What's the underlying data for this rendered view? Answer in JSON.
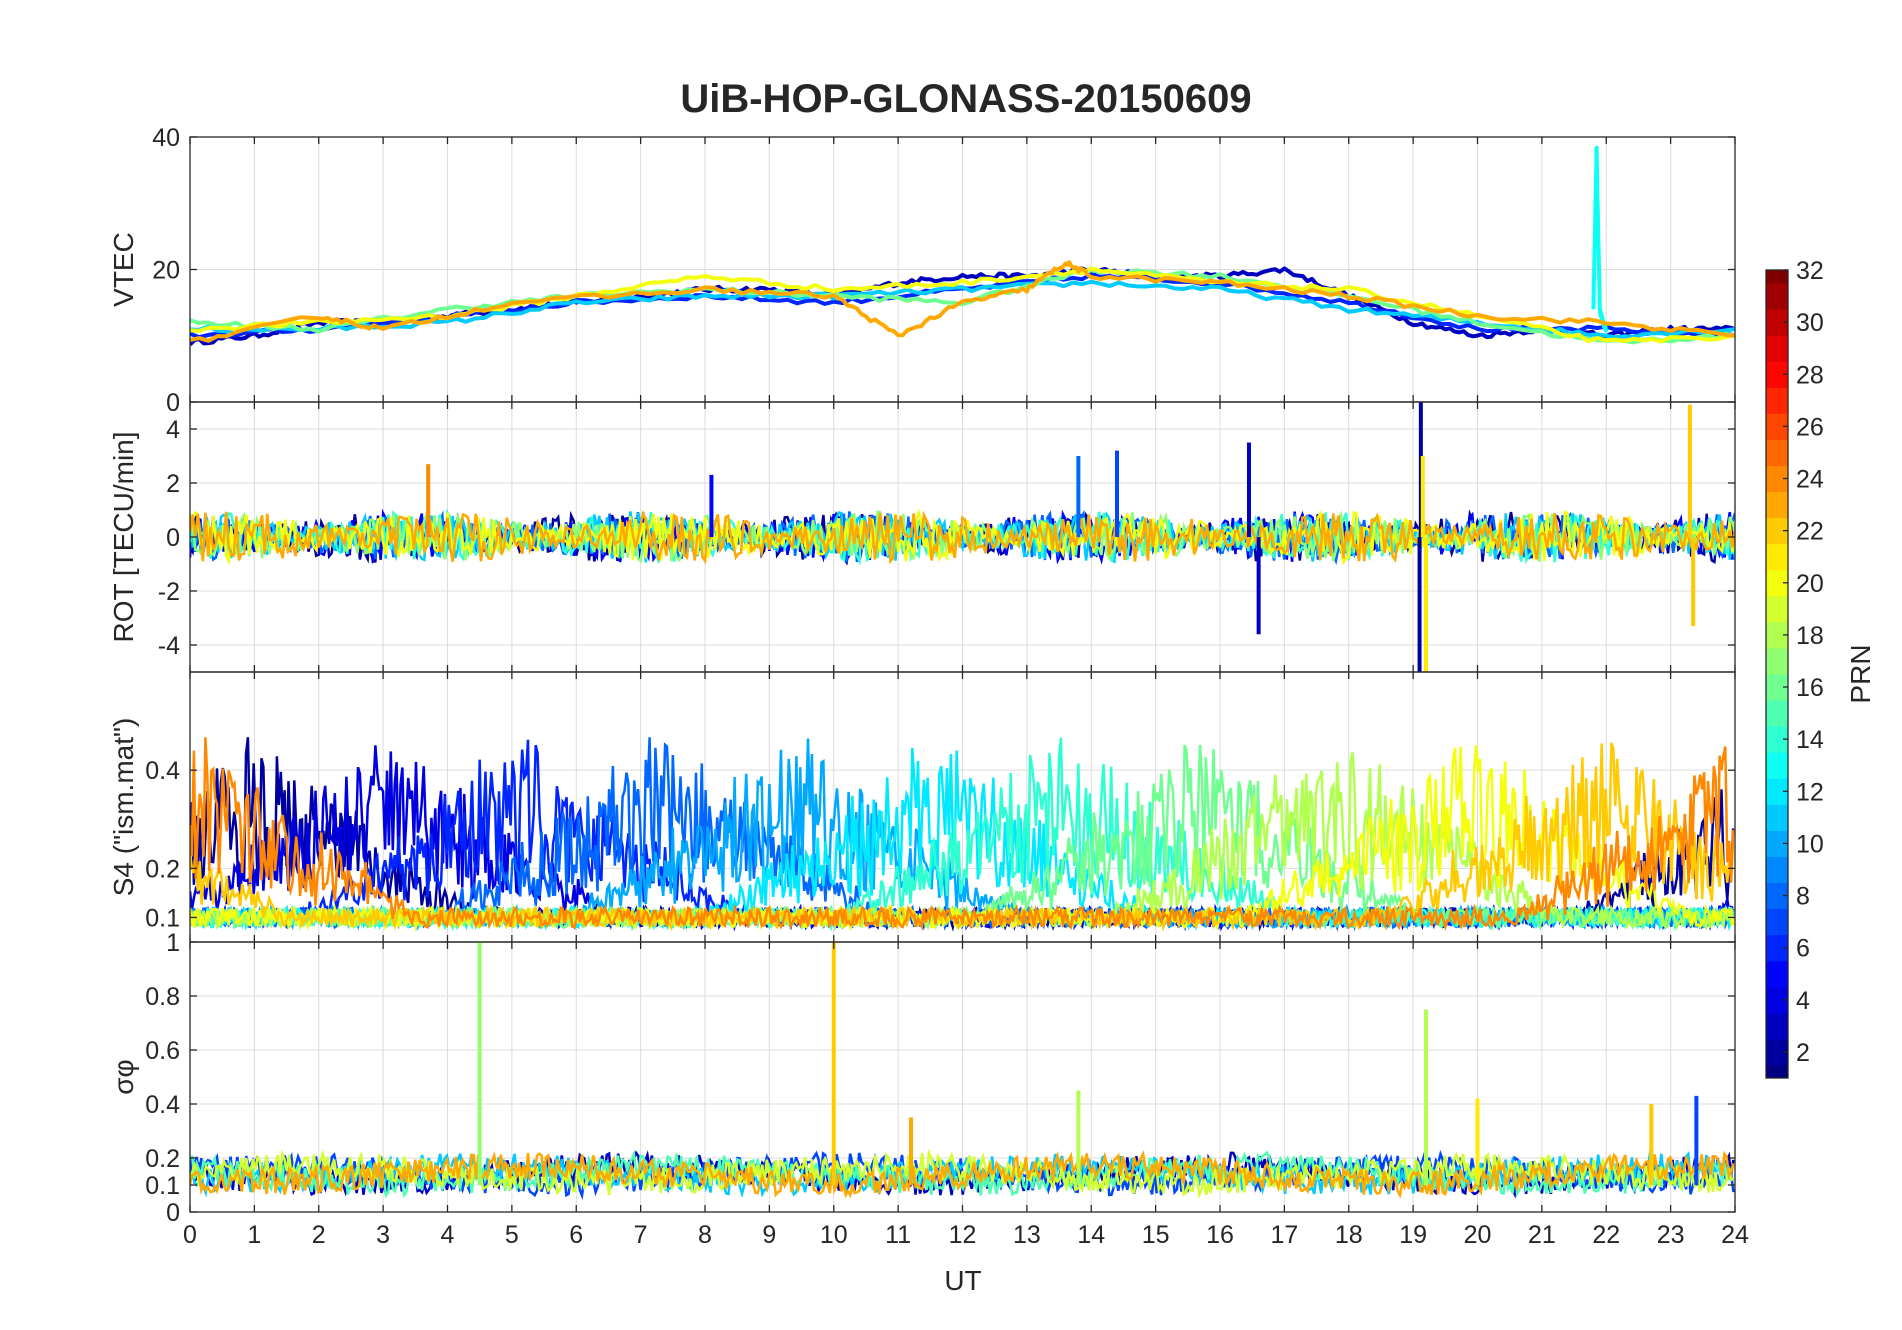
{
  "chart_data": {
    "title": "UiB-HOP-GLONASS-20150609",
    "type": "line",
    "xlabel": "UT",
    "xlim": [
      0,
      24
    ],
    "xticks": [
      "0",
      "1",
      "2",
      "3",
      "4",
      "5",
      "6",
      "7",
      "8",
      "9",
      "10",
      "11",
      "12",
      "13",
      "14",
      "15",
      "16",
      "17",
      "18",
      "19",
      "20",
      "21",
      "22",
      "23",
      "24"
    ],
    "colorbar": {
      "label": "PRN",
      "range": [
        1,
        32
      ],
      "ticks": [
        "2",
        "4",
        "6",
        "8",
        "10",
        "12",
        "14",
        "16",
        "18",
        "20",
        "22",
        "24",
        "26",
        "28",
        "30",
        "32"
      ]
    },
    "panels": [
      {
        "name": "vtec",
        "ylabel": "VTEC",
        "ylim": [
          0,
          40
        ],
        "yticks": [
          {
            "v": 0,
            "t": "0"
          },
          {
            "v": 20,
            "t": "20"
          },
          {
            "v": 40,
            "t": "40"
          }
        ],
        "series": [
          {
            "prn": 3,
            "x": [
              0,
              1,
              2,
              3,
              4,
              5,
              6,
              7,
              8,
              9,
              10,
              11,
              12,
              13,
              14,
              15,
              16,
              17,
              18,
              19,
              20,
              21,
              22,
              23,
              24
            ],
            "y": [
              9,
              10,
              12,
              12,
              13,
              14,
              15,
              16,
              17,
              17,
              16,
              18,
              19,
              19,
              20,
              19,
              19,
              20,
              16,
              12,
              10,
              11,
              10,
              11,
              11
            ]
          },
          {
            "prn": 6,
            "x": [
              0,
              2,
              4,
              6,
              8,
              10,
              12,
              14,
              16,
              18,
              20,
              22,
              24
            ],
            "y": [
              10,
              11,
              13,
              15,
              16,
              15,
              17,
              19,
              18,
              15,
              11,
              11,
              10
            ]
          },
          {
            "prn": 11,
            "x": [
              0,
              2,
              4,
              6,
              8,
              10,
              12,
              14,
              16,
              18,
              20,
              22,
              24
            ],
            "y": [
              11,
              11,
              12,
              15,
              16,
              16,
              17,
              18,
              17,
              14,
              12,
              10,
              11
            ]
          },
          {
            "prn": 13,
            "x": [
              21.8,
              21.85,
              21.9,
              21.95,
              22
            ],
            "y": [
              14,
              38,
              14,
              12,
              11
            ]
          },
          {
            "prn": 16,
            "x": [
              0,
              2,
              4,
              6,
              8,
              10,
              12,
              14,
              16,
              18,
              20,
              22,
              24
            ],
            "y": [
              12,
              11,
              14,
              16,
              17,
              16,
              15,
              20,
              19,
              16,
              12,
              9,
              10
            ]
          },
          {
            "prn": 20,
            "x": [
              0,
              2,
              4,
              6,
              8,
              10,
              12,
              14,
              16,
              18,
              20,
              22,
              24
            ],
            "y": [
              11,
              12,
              13,
              16,
              19,
              17,
              18,
              20,
              18,
              17,
              13,
              9,
              10
            ]
          },
          {
            "prn": 23,
            "x": [
              0,
              2,
              3,
              5,
              8,
              10,
              11,
              12,
              13,
              13.6,
              14,
              16,
              18,
              20,
              22,
              24
            ],
            "y": [
              9,
              13,
              11,
              15,
              17,
              16,
              10,
              15,
              17,
              21,
              19,
              18,
              16,
              13,
              12,
              10
            ]
          }
        ]
      },
      {
        "name": "rot",
        "ylabel": "ROT [TECU/min]",
        "ylim": [
          -5,
          5
        ],
        "yticks": [
          {
            "v": -4,
            "t": "-4"
          },
          {
            "v": -2,
            "t": "-2"
          },
          {
            "v": 0,
            "t": "0"
          },
          {
            "v": 2,
            "t": "2"
          },
          {
            "v": 4,
            "t": "4"
          }
        ],
        "spikes": [
          {
            "prn": 3,
            "x": 16.45,
            "y": 3.5
          },
          {
            "prn": 3,
            "x": 16.6,
            "y": -3.6
          },
          {
            "prn": 2,
            "x": 19.1,
            "y": -5
          },
          {
            "prn": 2,
            "x": 19.12,
            "y": 5
          },
          {
            "prn": 21,
            "x": 19.2,
            "y": -5
          },
          {
            "prn": 21,
            "x": 19.15,
            "y": 3
          },
          {
            "prn": 22,
            "x": 23.3,
            "y": 4.9
          },
          {
            "prn": 22,
            "x": 23.35,
            "y": -3.3
          },
          {
            "prn": 24,
            "x": 3.7,
            "y": 2.7
          },
          {
            "prn": 8,
            "x": 13.8,
            "y": 3
          },
          {
            "prn": 7,
            "x": 14.4,
            "y": 3.2
          },
          {
            "prn": 5,
            "x": 8.1,
            "y": 2.3
          }
        ]
      },
      {
        "name": "s4",
        "ylabel": "S4 (\"ism.mat\")",
        "ylim": [
          0.05,
          0.6
        ],
        "yticks": [
          {
            "v": 0.1,
            "t": "0.1"
          },
          {
            "v": 0.2,
            "t": "0.2"
          },
          {
            "v": 0.4,
            "t": "0.4"
          }
        ],
        "baseline": 0.08
      },
      {
        "name": "sigma",
        "ylabel": "σφ",
        "ylim": [
          0,
          1
        ],
        "yticks": [
          {
            "v": 0,
            "t": "0"
          },
          {
            "v": 0.1,
            "t": "0.1"
          },
          {
            "v": 0.2,
            "t": "0.2"
          },
          {
            "v": 0.4,
            "t": "0.4"
          },
          {
            "v": 0.6,
            "t": "0.6"
          },
          {
            "v": 0.8,
            "t": "0.8"
          },
          {
            "v": 1,
            "t": "1"
          }
        ],
        "baseline": 0.12,
        "spikes": [
          {
            "prn": 17,
            "x": 4.5,
            "y": 1.0
          },
          {
            "prn": 22,
            "x": 10.0,
            "y": 1.0
          },
          {
            "prn": 18,
            "x": 19.2,
            "y": 0.75
          },
          {
            "prn": 21,
            "x": 20.0,
            "y": 0.42
          },
          {
            "prn": 18,
            "x": 13.8,
            "y": 0.45
          },
          {
            "prn": 7,
            "x": 23.4,
            "y": 0.43
          },
          {
            "prn": 22,
            "x": 22.7,
            "y": 0.4
          },
          {
            "prn": 23,
            "x": 11.2,
            "y": 0.35
          }
        ]
      }
    ]
  }
}
